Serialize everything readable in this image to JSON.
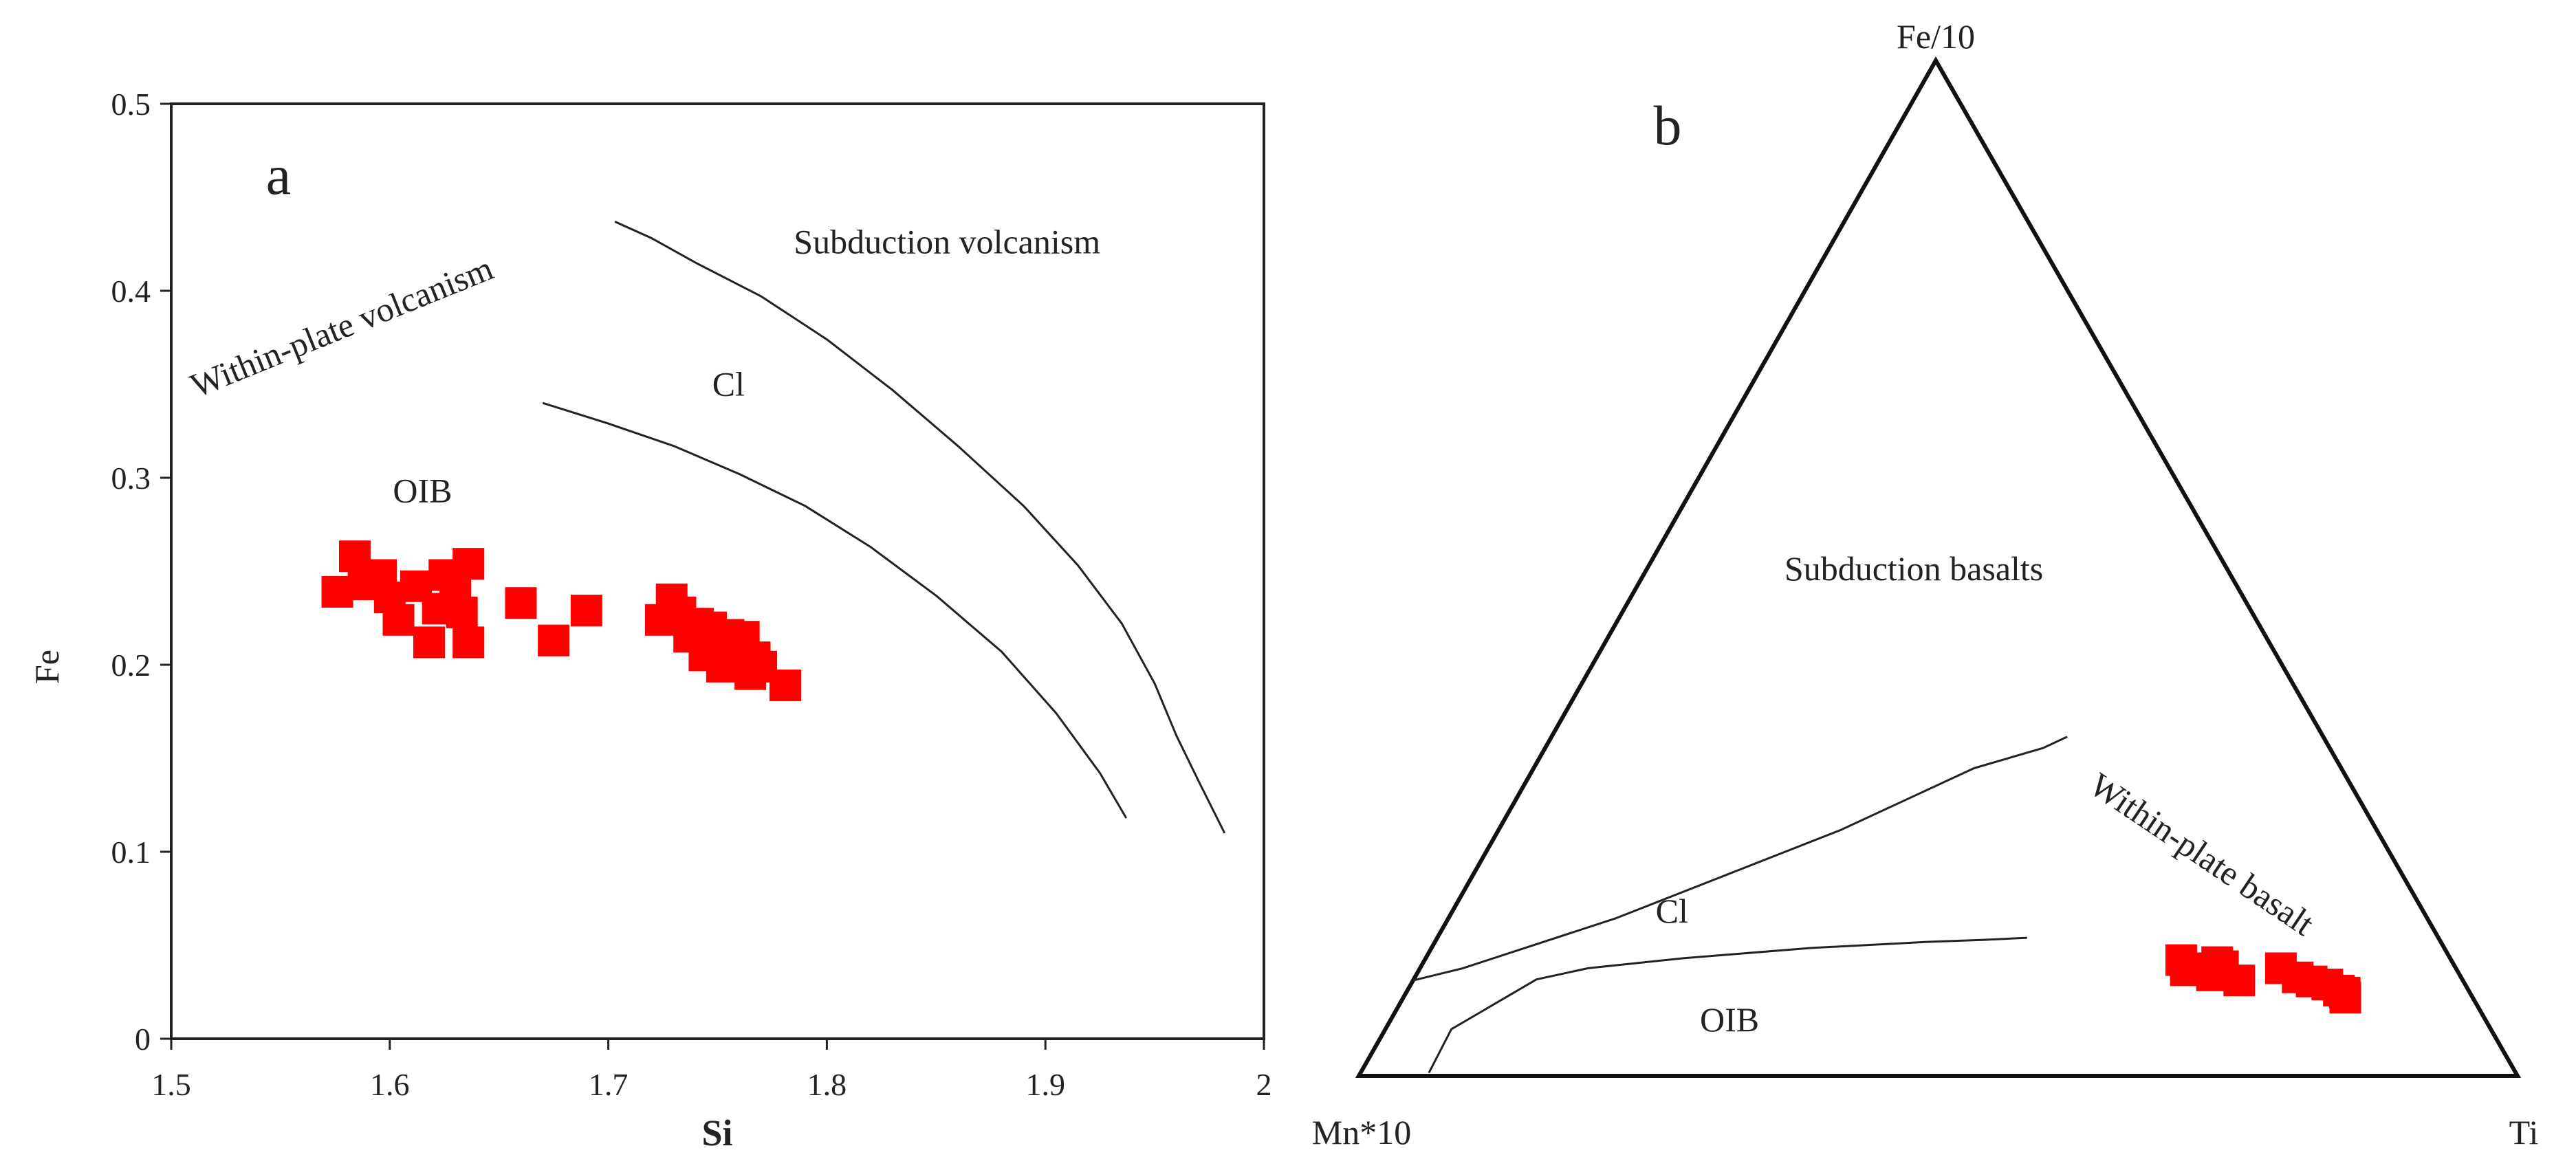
{
  "colors": {
    "marker": "#ff0000",
    "axis": "#222222",
    "line": "#222222",
    "text": "#222222"
  },
  "chart_data": [
    {
      "type": "scatter",
      "panel_label": "a",
      "xlabel": "Si",
      "ylabel": "Fe",
      "xlim": [
        1.5,
        2.0
      ],
      "ylim": [
        0,
        0.5
      ],
      "x_ticks": [
        1.5,
        1.6,
        1.7,
        1.8,
        1.9,
        2.0
      ],
      "x_tick_labels": [
        "1.5",
        "1.6",
        "1.7",
        "1.8",
        "1.9",
        "2"
      ],
      "y_ticks": [
        0,
        0.1,
        0.2,
        0.3,
        0.4,
        0.5
      ],
      "y_tick_labels": [
        "0",
        "0.1",
        "0.2",
        "0.3",
        "0.4",
        "0.5"
      ],
      "boundaries": [
        {
          "name": "outer-boundary",
          "points": [
            [
              1.703,
              0.437
            ],
            [
              1.72,
              0.428
            ],
            [
              1.74,
              0.415
            ],
            [
              1.77,
              0.397
            ],
            [
              1.8,
              0.374
            ],
            [
              1.83,
              0.347
            ],
            [
              1.86,
              0.317
            ],
            [
              1.89,
              0.285
            ],
            [
              1.915,
              0.253
            ],
            [
              1.935,
              0.222
            ],
            [
              1.95,
              0.19
            ],
            [
              1.96,
              0.162
            ],
            [
              1.97,
              0.138
            ],
            [
              1.982,
              0.11
            ]
          ]
        },
        {
          "name": "inner-boundary",
          "points": [
            [
              1.67,
              0.34
            ],
            [
              1.7,
              0.329
            ],
            [
              1.73,
              0.317
            ],
            [
              1.76,
              0.302
            ],
            [
              1.79,
              0.285
            ],
            [
              1.82,
              0.263
            ],
            [
              1.85,
              0.237
            ],
            [
              1.88,
              0.207
            ],
            [
              1.905,
              0.174
            ],
            [
              1.925,
              0.142
            ],
            [
              1.937,
              0.118
            ]
          ]
        }
      ],
      "annotations": [
        {
          "text": "Subduction volcanism",
          "x": 1.855,
          "y": 0.42,
          "rotation": 0
        },
        {
          "text": "Within-plate volcanism",
          "x": 1.58,
          "y": 0.375,
          "rotation": -22
        },
        {
          "text": "Cl",
          "x": 1.755,
          "y": 0.344,
          "rotation": 0
        },
        {
          "text": "OIB",
          "x": 1.615,
          "y": 0.287,
          "rotation": 0
        }
      ],
      "series": [
        {
          "name": "samples",
          "marker": "square",
          "points": [
            [
              1.576,
              0.239
            ],
            [
              1.584,
              0.258
            ],
            [
              1.588,
              0.243
            ],
            [
              1.596,
              0.248
            ],
            [
              1.6,
              0.236
            ],
            [
              1.604,
              0.224
            ],
            [
              1.612,
              0.242
            ],
            [
              1.618,
              0.212
            ],
            [
              1.622,
              0.23
            ],
            [
              1.625,
              0.248
            ],
            [
              1.63,
              0.243
            ],
            [
              1.633,
              0.228
            ],
            [
              1.636,
              0.254
            ],
            [
              1.636,
              0.212
            ],
            [
              1.66,
              0.233
            ],
            [
              1.675,
              0.213
            ],
            [
              1.69,
              0.229
            ],
            [
              1.724,
              0.224
            ],
            [
              1.729,
              0.235
            ],
            [
              1.733,
              0.228
            ],
            [
              1.737,
              0.215
            ],
            [
              1.741,
              0.222
            ],
            [
              1.744,
              0.205
            ],
            [
              1.747,
              0.22
            ],
            [
              1.75,
              0.213
            ],
            [
              1.752,
              0.199
            ],
            [
              1.755,
              0.216
            ],
            [
              1.758,
              0.207
            ],
            [
              1.76,
              0.2
            ],
            [
              1.762,
              0.215
            ],
            [
              1.765,
              0.195
            ],
            [
              1.767,
              0.204
            ],
            [
              1.77,
              0.199
            ],
            [
              1.781,
              0.189
            ]
          ]
        }
      ]
    },
    {
      "type": "ternary",
      "panel_label": "b",
      "apex_labels": {
        "top": "Fe/10",
        "left": "Mn*10",
        "right": "Ti"
      },
      "coordinate_note": "points are [Fe/10, Mn*10, Ti] proportions",
      "boundaries": [
        {
          "name": "subduction-boundary",
          "points": [
            [
              0.094,
              0.906,
              0.0
            ],
            [
              0.106,
              0.857,
              0.037
            ],
            [
              0.155,
              0.701,
              0.144
            ],
            [
              0.242,
              0.463,
              0.295
            ],
            [
              0.303,
              0.317,
              0.38
            ],
            [
              0.323,
              0.247,
              0.43
            ],
            [
              0.334,
              0.221,
              0.445
            ]
          ]
        },
        {
          "name": "ocean-island-boundary",
          "points": [
            [
              0.003,
              0.938,
              0.059
            ],
            [
              0.046,
              0.897,
              0.057
            ],
            [
              0.095,
              0.799,
              0.106
            ],
            [
              0.106,
              0.749,
              0.145
            ],
            [
              0.116,
              0.661,
              0.223
            ],
            [
              0.126,
              0.546,
              0.328
            ],
            [
              0.132,
              0.442,
              0.426
            ],
            [
              0.134,
              0.393,
              0.473
            ],
            [
              0.136,
              0.355,
              0.509
            ]
          ]
        }
      ],
      "annotations": [
        {
          "text": "Subduction basalts",
          "point": [
            0.488,
            0.276,
            0.236
          ],
          "rotation": 0
        },
        {
          "text": "Within-plate basalt",
          "point": [
            0.209,
            0.173,
            0.618
          ],
          "rotation": 34
        },
        {
          "text": "Cl",
          "point": [
            0.151,
            0.654,
            0.195
          ],
          "rotation": 0
        },
        {
          "text": "OIB",
          "point": [
            0.044,
            0.658,
            0.298
          ],
          "rotation": 0
        }
      ],
      "series": [
        {
          "name": "samples",
          "marker": "square",
          "points": [
            [
              0.114,
              0.233,
              0.653
            ],
            [
              0.104,
              0.234,
              0.662
            ],
            [
              0.106,
              0.217,
              0.677
            ],
            [
              0.099,
              0.214,
              0.687
            ],
            [
              0.112,
              0.203,
              0.685
            ],
            [
              0.101,
              0.204,
              0.695
            ],
            [
              0.108,
              0.2,
              0.692
            ],
            [
              0.094,
              0.193,
              0.713
            ],
            [
              0.106,
              0.151,
              0.743
            ],
            [
              0.097,
              0.141,
              0.762
            ],
            [
              0.093,
              0.131,
              0.776
            ],
            [
              0.09,
              0.119,
              0.791
            ],
            [
              0.084,
              0.112,
              0.804
            ],
            [
              0.082,
              0.108,
              0.81
            ],
            [
              0.077,
              0.11,
              0.813
            ]
          ]
        }
      ]
    }
  ]
}
